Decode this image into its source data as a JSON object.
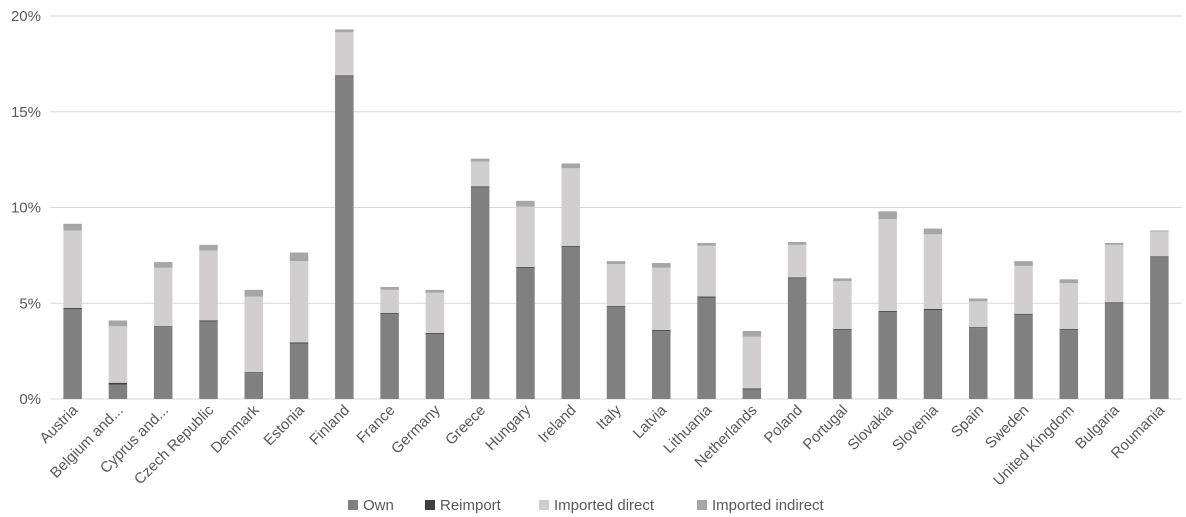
{
  "chart_data": {
    "type": "bar",
    "stacked": true,
    "categories": [
      "Austria",
      "Belgium and...",
      "Cyprus and...",
      "Czech Republic",
      "Denmark",
      "Estonia",
      "Finland",
      "France",
      "Germany",
      "Greece",
      "Hungary",
      "Ireland",
      "Italy",
      "Latvia",
      "Lithuania",
      "Netherlands",
      "Poland",
      "Portugal",
      "Slovakia",
      "Slovenia",
      "Spain",
      "Sweden",
      "United Kingdom",
      "Bulgaria",
      "Roumania"
    ],
    "series": [
      {
        "name": "Own",
        "color": "#808080",
        "values": [
          4.7,
          0.75,
          3.75,
          4.05,
          1.35,
          2.9,
          16.85,
          4.45,
          3.4,
          11.05,
          6.85,
          7.95,
          4.8,
          3.55,
          5.3,
          0.5,
          6.3,
          3.6,
          4.55,
          4.65,
          3.7,
          4.4,
          3.6,
          5.0,
          7.4
        ]
      },
      {
        "name": "Reimport",
        "color": "#404040",
        "values": [
          0.05,
          0.1,
          0.05,
          0.05,
          0.05,
          0.05,
          0.05,
          0.05,
          0.05,
          0.05,
          0.05,
          0.05,
          0.05,
          0.05,
          0.05,
          0.05,
          0.05,
          0.05,
          0.05,
          0.05,
          0.05,
          0.05,
          0.05,
          0.05,
          0.05
        ]
      },
      {
        "name": "Imported direct",
        "color": "#d0cece",
        "values": [
          4.05,
          2.95,
          3.05,
          3.65,
          3.95,
          4.25,
          2.25,
          1.2,
          2.1,
          1.3,
          3.15,
          4.05,
          2.2,
          3.25,
          2.65,
          2.7,
          1.7,
          2.5,
          4.8,
          3.9,
          1.35,
          2.5,
          2.4,
          3.0,
          1.3
        ]
      },
      {
        "name": "Imported indirect",
        "color": "#a6a6a6",
        "values": [
          0.35,
          0.3,
          0.3,
          0.3,
          0.35,
          0.45,
          0.15,
          0.15,
          0.15,
          0.15,
          0.3,
          0.25,
          0.15,
          0.25,
          0.15,
          0.3,
          0.15,
          0.15,
          0.4,
          0.3,
          0.15,
          0.25,
          0.2,
          0.1,
          0.05
        ]
      }
    ],
    "ylim": [
      0,
      20
    ],
    "yticks": [
      "0%",
      "5%",
      "10%",
      "15%",
      "20%"
    ],
    "ytick_values": [
      0,
      5,
      10,
      15,
      20
    ],
    "grid": true,
    "legend": "bottom",
    "title": "",
    "xlabel": "",
    "ylabel": ""
  }
}
